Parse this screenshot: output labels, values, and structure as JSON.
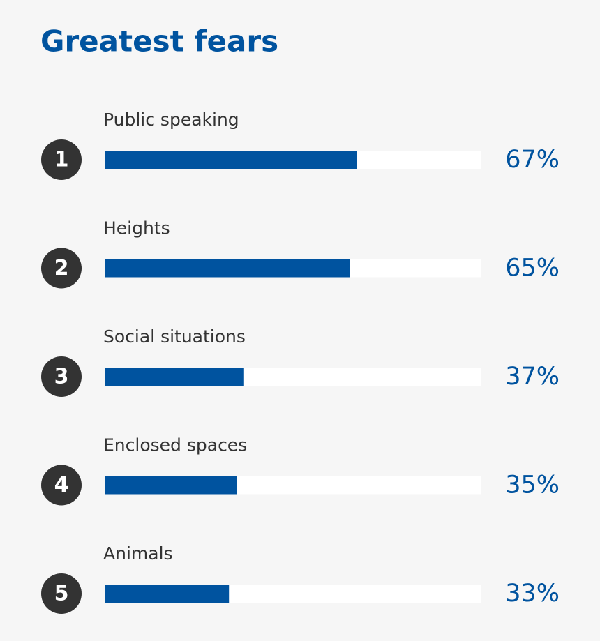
{
  "chart_data": {
    "type": "bar",
    "orientation": "horizontal",
    "title": "Greatest fears",
    "categories": [
      "Public speaking",
      "Heights",
      "Social situations",
      "Enclosed spaces",
      "Animals"
    ],
    "ranks": [
      1,
      2,
      3,
      4,
      5
    ],
    "values": [
      67,
      65,
      37,
      35,
      33
    ],
    "value_labels": [
      "67%",
      "65%",
      "37%",
      "35%",
      "33%"
    ],
    "color": "#00539f",
    "xlim": [
      0,
      100
    ]
  }
}
